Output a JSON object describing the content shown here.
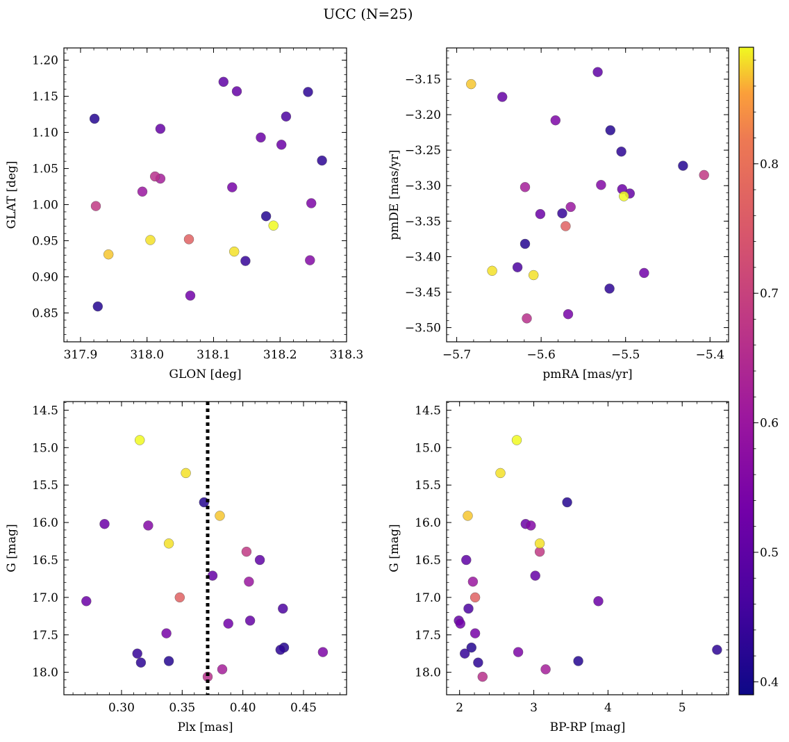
{
  "chart_data": {
    "title": "UCC (N=25)",
    "colorbar": {
      "colormap": "plasma",
      "range": [
        0.39,
        0.89
      ],
      "ticks": [
        0.4,
        0.5,
        0.6,
        0.7,
        0.8
      ],
      "tick_labels": [
        "0.4",
        "0.5",
        "0.6",
        "0.7",
        "0.8"
      ]
    },
    "colors": {
      "background": "#ffffff",
      "dotted_line": "#000000"
    },
    "points": [
      {
        "glon": 317.921,
        "glat": 1.119,
        "pmra": -5.518,
        "pmde": -3.222,
        "plx": 0.368,
        "g": 15.73,
        "bprp": 3.45,
        "prob": 0.42
      },
      {
        "glon": 317.926,
        "glat": 0.859,
        "pmra": -5.432,
        "pmde": -3.272,
        "plx": 0.434,
        "g": 17.67,
        "bprp": 2.16,
        "prob": 0.42
      },
      {
        "glon": 318.263,
        "glat": 1.061,
        "pmra": -5.505,
        "pmde": -3.252,
        "plx": 0.316,
        "g": 17.87,
        "bprp": 2.25,
        "prob": 0.43
      },
      {
        "glon": 318.148,
        "glat": 0.922,
        "pmra": -5.575,
        "pmde": -3.339,
        "plx": 0.313,
        "g": 17.75,
        "bprp": 2.07,
        "prob": 0.44
      },
      {
        "glon": 318.179,
        "glat": 0.984,
        "pmra": -5.619,
        "pmde": -3.382,
        "plx": 0.339,
        "g": 17.85,
        "bprp": 3.6,
        "prob": 0.42
      },
      {
        "glon": 318.242,
        "glat": 1.156,
        "pmra": -5.519,
        "pmde": -3.445,
        "plx": 0.431,
        "g": 17.7,
        "bprp": 5.47,
        "prob": 0.43
      },
      {
        "glon": 318.209,
        "glat": 1.122,
        "pmra": -5.628,
        "pmde": -3.415,
        "plx": 0.433,
        "g": 17.15,
        "bprp": 2.12,
        "prob": 0.47
      },
      {
        "glon": 318.115,
        "glat": 1.17,
        "pmra": -5.533,
        "pmde": -3.14,
        "plx": 0.414,
        "g": 16.5,
        "bprp": 2.09,
        "prob": 0.5
      },
      {
        "glon": 318.135,
        "glat": 1.157,
        "pmra": -5.646,
        "pmde": -3.175,
        "plx": 0.375,
        "g": 16.71,
        "bprp": 3.02,
        "prob": 0.51
      },
      {
        "glon": 318.02,
        "glat": 1.105,
        "pmra": -5.495,
        "pmde": -3.311,
        "plx": 0.406,
        "g": 17.31,
        "bprp": 1.99,
        "prob": 0.51
      },
      {
        "glon": 318.171,
        "glat": 1.093,
        "pmra": -5.601,
        "pmde": -3.34,
        "plx": 0.286,
        "g": 16.02,
        "bprp": 2.89,
        "prob": 0.52
      },
      {
        "glon": 318.202,
        "glat": 1.083,
        "pmra": -5.504,
        "pmde": -3.305,
        "plx": 0.271,
        "g": 17.05,
        "bprp": 3.87,
        "prob": 0.52
      },
      {
        "glon": 318.065,
        "glat": 0.874,
        "pmra": -5.478,
        "pmde": -3.423,
        "plx": 0.388,
        "g": 17.35,
        "bprp": 2.01,
        "prob": 0.53
      },
      {
        "glon": 318.128,
        "glat": 1.024,
        "pmra": -5.568,
        "pmde": -3.481,
        "plx": 0.337,
        "g": 17.48,
        "bprp": 2.21,
        "prob": 0.54
      },
      {
        "glon": 318.245,
        "glat": 0.923,
        "pmra": -5.529,
        "pmde": -3.299,
        "plx": 0.322,
        "g": 16.04,
        "bprp": 2.96,
        "prob": 0.56
      },
      {
        "glon": 318.247,
        "glat": 1.002,
        "pmra": -5.583,
        "pmde": -3.208,
        "plx": 0.466,
        "g": 17.73,
        "bprp": 2.79,
        "prob": 0.55
      },
      {
        "glon": 317.993,
        "glat": 1.018,
        "pmra": -5.565,
        "pmde": -3.33,
        "plx": 0.405,
        "g": 16.79,
        "bprp": 2.18,
        "prob": 0.6
      },
      {
        "glon": 318.02,
        "glat": 1.036,
        "pmra": -5.619,
        "pmde": -3.302,
        "plx": 0.383,
        "g": 17.96,
        "bprp": 3.16,
        "prob": 0.62
      },
      {
        "glon": 318.012,
        "glat": 1.039,
        "pmra": -5.617,
        "pmde": -3.487,
        "plx": 0.371,
        "g": 18.06,
        "bprp": 2.31,
        "prob": 0.66
      },
      {
        "glon": 317.923,
        "glat": 0.998,
        "pmra": -5.407,
        "pmde": -3.285,
        "plx": 0.403,
        "g": 16.39,
        "bprp": 3.08,
        "prob": 0.68
      },
      {
        "glon": 318.063,
        "glat": 0.952,
        "pmra": -5.571,
        "pmde": -3.357,
        "plx": 0.348,
        "g": 17.0,
        "bprp": 2.21,
        "prob": 0.77
      },
      {
        "glon": 317.942,
        "glat": 0.931,
        "pmra": -5.683,
        "pmde": -3.157,
        "plx": 0.381,
        "g": 15.91,
        "bprp": 2.11,
        "prob": 0.87
      },
      {
        "glon": 318.005,
        "glat": 0.951,
        "pmra": -5.658,
        "pmde": -3.42,
        "plx": 0.339,
        "g": 16.28,
        "bprp": 3.08,
        "prob": 0.88
      },
      {
        "glon": 318.131,
        "glat": 0.935,
        "pmra": -5.609,
        "pmde": -3.426,
        "plx": 0.353,
        "g": 15.34,
        "bprp": 2.55,
        "prob": 0.88
      },
      {
        "glon": 318.19,
        "glat": 0.971,
        "pmra": -5.502,
        "pmde": -3.315,
        "plx": 0.315,
        "g": 14.9,
        "bprp": 2.77,
        "prob": 0.89
      }
    ],
    "panels": [
      {
        "id": "glon-glat",
        "type": "scatter",
        "x_key": "glon",
        "y_key": "glat",
        "xlabel": "GLON [deg]",
        "ylabel": "GLAT [deg]",
        "xlim": [
          317.875,
          318.3
        ],
        "ylim": [
          0.81,
          1.217
        ],
        "y_inverted": false,
        "xticks": [
          317.9,
          318.0,
          318.1,
          318.2,
          318.3
        ],
        "xtick_labels": [
          "317.9",
          "318.0",
          "318.1",
          "318.2",
          "318.3"
        ],
        "yticks": [
          0.85,
          0.9,
          0.95,
          1.0,
          1.05,
          1.1,
          1.15,
          1.2
        ],
        "ytick_labels": [
          "0.85",
          "0.90",
          "0.95",
          "1.00",
          "1.05",
          "1.10",
          "1.15",
          "1.20"
        ]
      },
      {
        "id": "pm",
        "type": "scatter",
        "x_key": "pmra",
        "y_key": "pmde",
        "xlabel": "pmRA [mas/yr]",
        "ylabel": "pmDE [mas/yr]",
        "xlim": [
          -5.712,
          -5.378
        ],
        "ylim": [
          -3.52,
          -3.106
        ],
        "y_inverted": false,
        "xticks": [
          -5.7,
          -5.6,
          -5.5,
          -5.4
        ],
        "xtick_labels": [
          "−5.7",
          "−5.6",
          "−5.5",
          "−5.4"
        ],
        "yticks": [
          -3.5,
          -3.45,
          -3.4,
          -3.35,
          -3.3,
          -3.25,
          -3.2,
          -3.15
        ],
        "ytick_labels": [
          "−3.50",
          "−3.45",
          "−3.40",
          "−3.35",
          "−3.30",
          "−3.25",
          "−3.20",
          "−3.15"
        ]
      },
      {
        "id": "plx-g",
        "type": "scatter",
        "x_key": "plx",
        "y_key": "g",
        "xlabel": "Plx [mas]",
        "ylabel": "G [mag]",
        "xlim": [
          0.2525,
          0.4855
        ],
        "ylim": [
          14.385,
          18.3
        ],
        "y_inverted": true,
        "vline": 0.371,
        "xticks": [
          0.3,
          0.35,
          0.4,
          0.45
        ],
        "xtick_labels": [
          "0.30",
          "0.35",
          "0.40",
          "0.45"
        ],
        "yticks": [
          14.5,
          15.0,
          15.5,
          16.0,
          16.5,
          17.0,
          17.5,
          18.0
        ],
        "ytick_labels": [
          "14.5",
          "15.0",
          "15.5",
          "16.0",
          "16.5",
          "17.0",
          "17.5",
          "18.0"
        ]
      },
      {
        "id": "cmd",
        "type": "scatter",
        "x_key": "bprp",
        "y_key": "g",
        "xlabel": "BP-RP [mag]",
        "ylabel": "G [mag]",
        "xlim": [
          1.825,
          5.625
        ],
        "ylim": [
          14.385,
          18.3
        ],
        "y_inverted": true,
        "xticks": [
          2,
          3,
          4,
          5
        ],
        "xtick_labels": [
          "2",
          "3",
          "4",
          "5"
        ],
        "yticks": [
          14.5,
          15.0,
          15.5,
          16.0,
          16.5,
          17.0,
          17.5,
          18.0
        ],
        "ytick_labels": [
          "14.5",
          "15.0",
          "15.5",
          "16.0",
          "16.5",
          "17.0",
          "17.5",
          "18.0"
        ]
      }
    ]
  }
}
